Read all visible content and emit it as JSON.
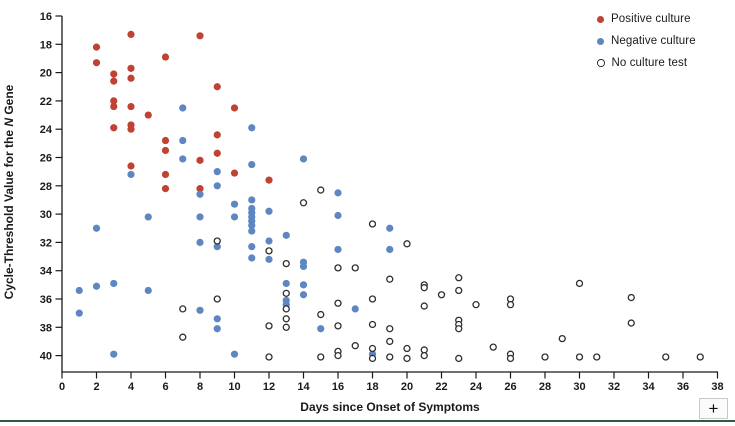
{
  "chart": {
    "xlabel": "Days since Onset of Symptoms",
    "ylabel_pre": "Cycle-Threshold Value for the ",
    "ylabel_italic": "N",
    "ylabel_post": " Gene",
    "x_ticks": [
      0,
      2,
      4,
      6,
      8,
      10,
      12,
      14,
      16,
      18,
      20,
      22,
      24,
      26,
      28,
      30,
      32,
      34,
      36,
      38
    ],
    "y_ticks": [
      16,
      18,
      20,
      22,
      24,
      26,
      28,
      30,
      32,
      34,
      36,
      38,
      40
    ]
  },
  "chart_data": {
    "type": "scatter",
    "title": "",
    "xlabel": "Days since Onset of Symptoms",
    "ylabel": "Cycle-Threshold Value for the N Gene",
    "xlim": [
      0,
      38
    ],
    "ylim_inverted": [
      16,
      41
    ],
    "grid": false,
    "legend_position": "top-right",
    "axis_color": "#1a1a1a",
    "series": [
      {
        "name": "Positive culture",
        "marker": "filled-circle",
        "color": "#bf4233",
        "points": [
          [
            2,
            18.2
          ],
          [
            2,
            19.3
          ],
          [
            3,
            20.1
          ],
          [
            3,
            20.6
          ],
          [
            3,
            22.0
          ],
          [
            3,
            22.4
          ],
          [
            3,
            23.9
          ],
          [
            4,
            17.3
          ],
          [
            4,
            19.7
          ],
          [
            4,
            20.4
          ],
          [
            4,
            22.4
          ],
          [
            4,
            23.7
          ],
          [
            4,
            24.0
          ],
          [
            4,
            26.6
          ],
          [
            5,
            23.0
          ],
          [
            6,
            18.9
          ],
          [
            6,
            24.8
          ],
          [
            6,
            25.5
          ],
          [
            6,
            27.2
          ],
          [
            6,
            28.2
          ],
          [
            8,
            17.4
          ],
          [
            8,
            26.2
          ],
          [
            8,
            28.2
          ],
          [
            9,
            21.0
          ],
          [
            9,
            24.4
          ],
          [
            9,
            25.7
          ],
          [
            10,
            22.5
          ],
          [
            10,
            27.1
          ],
          [
            12,
            27.6
          ]
        ]
      },
      {
        "name": "Negative culture",
        "marker": "filled-circle",
        "color": "#5d86c3",
        "points": [
          [
            1,
            35.4
          ],
          [
            1,
            37.0
          ],
          [
            2,
            31.0
          ],
          [
            2,
            35.1
          ],
          [
            3,
            34.9
          ],
          [
            3,
            39.9
          ],
          [
            4,
            27.2
          ],
          [
            5,
            30.2
          ],
          [
            5,
            35.4
          ],
          [
            7,
            22.5
          ],
          [
            7,
            24.8
          ],
          [
            7,
            26.1
          ],
          [
            8,
            28.6
          ],
          [
            8,
            30.2
          ],
          [
            8,
            32.0
          ],
          [
            8,
            36.8
          ],
          [
            9,
            27.0
          ],
          [
            9,
            28.0
          ],
          [
            9,
            32.3
          ],
          [
            9,
            37.4
          ],
          [
            9,
            38.1
          ],
          [
            10,
            29.3
          ],
          [
            10,
            30.2
          ],
          [
            10,
            39.9
          ],
          [
            11,
            23.9
          ],
          [
            11,
            26.5
          ],
          [
            11,
            29.0
          ],
          [
            11,
            29.6
          ],
          [
            11,
            29.9
          ],
          [
            11,
            30.2
          ],
          [
            11,
            30.5
          ],
          [
            11,
            30.8
          ],
          [
            11,
            31.2
          ],
          [
            11,
            32.3
          ],
          [
            11,
            33.1
          ],
          [
            12,
            29.8
          ],
          [
            12,
            31.9
          ],
          [
            12,
            33.2
          ],
          [
            13,
            31.5
          ],
          [
            13,
            34.9
          ],
          [
            13,
            36.1
          ],
          [
            13,
            36.4
          ],
          [
            14,
            26.1
          ],
          [
            14,
            33.4
          ],
          [
            14,
            33.7
          ],
          [
            14,
            35.0
          ],
          [
            14,
            35.7
          ],
          [
            15,
            38.1
          ],
          [
            16,
            28.5
          ],
          [
            16,
            30.1
          ],
          [
            16,
            32.5
          ],
          [
            17,
            36.7
          ],
          [
            18,
            39.9
          ],
          [
            19,
            31.0
          ],
          [
            19,
            32.5
          ]
        ]
      },
      {
        "name": "No culture test",
        "marker": "open-circle",
        "color": "#2f2f2f",
        "points": [
          [
            7,
            36.7
          ],
          [
            7,
            38.7
          ],
          [
            9,
            31.9
          ],
          [
            9,
            36.0
          ],
          [
            12,
            32.6
          ],
          [
            12,
            37.9
          ],
          [
            12,
            40.1
          ],
          [
            13,
            33.5
          ],
          [
            13,
            35.6
          ],
          [
            13,
            36.7
          ],
          [
            13,
            37.4
          ],
          [
            13,
            38.0
          ],
          [
            14,
            29.2
          ],
          [
            15,
            28.3
          ],
          [
            15,
            37.1
          ],
          [
            15,
            40.1
          ],
          [
            16,
            33.8
          ],
          [
            16,
            36.3
          ],
          [
            16,
            37.9
          ],
          [
            16,
            39.7
          ],
          [
            16,
            40.0
          ],
          [
            17,
            33.8
          ],
          [
            17,
            39.3
          ],
          [
            18,
            30.7
          ],
          [
            18,
            36.0
          ],
          [
            18,
            37.8
          ],
          [
            18,
            39.5
          ],
          [
            18,
            40.2
          ],
          [
            19,
            34.6
          ],
          [
            19,
            38.1
          ],
          [
            19,
            39.0
          ],
          [
            19,
            40.1
          ],
          [
            20,
            32.1
          ],
          [
            20,
            39.5
          ],
          [
            20,
            40.2
          ],
          [
            21,
            35.0
          ],
          [
            21,
            35.2
          ],
          [
            21,
            36.5
          ],
          [
            21,
            39.6
          ],
          [
            21,
            40.0
          ],
          [
            22,
            35.7
          ],
          [
            23,
            34.5
          ],
          [
            23,
            35.4
          ],
          [
            23,
            37.5
          ],
          [
            23,
            37.8
          ],
          [
            23,
            38.1
          ],
          [
            23,
            40.2
          ],
          [
            24,
            36.4
          ],
          [
            25,
            39.4
          ],
          [
            26,
            36.0
          ],
          [
            26,
            36.4
          ],
          [
            26,
            39.9
          ],
          [
            26,
            40.2
          ],
          [
            28,
            40.1
          ],
          [
            29,
            38.8
          ],
          [
            30,
            34.9
          ],
          [
            30,
            40.1
          ],
          [
            31,
            40.1
          ],
          [
            33,
            35.9
          ],
          [
            33,
            37.7
          ],
          [
            35,
            40.1
          ],
          [
            37,
            40.1
          ]
        ]
      }
    ]
  },
  "controls": {
    "zoom_label": "+"
  }
}
